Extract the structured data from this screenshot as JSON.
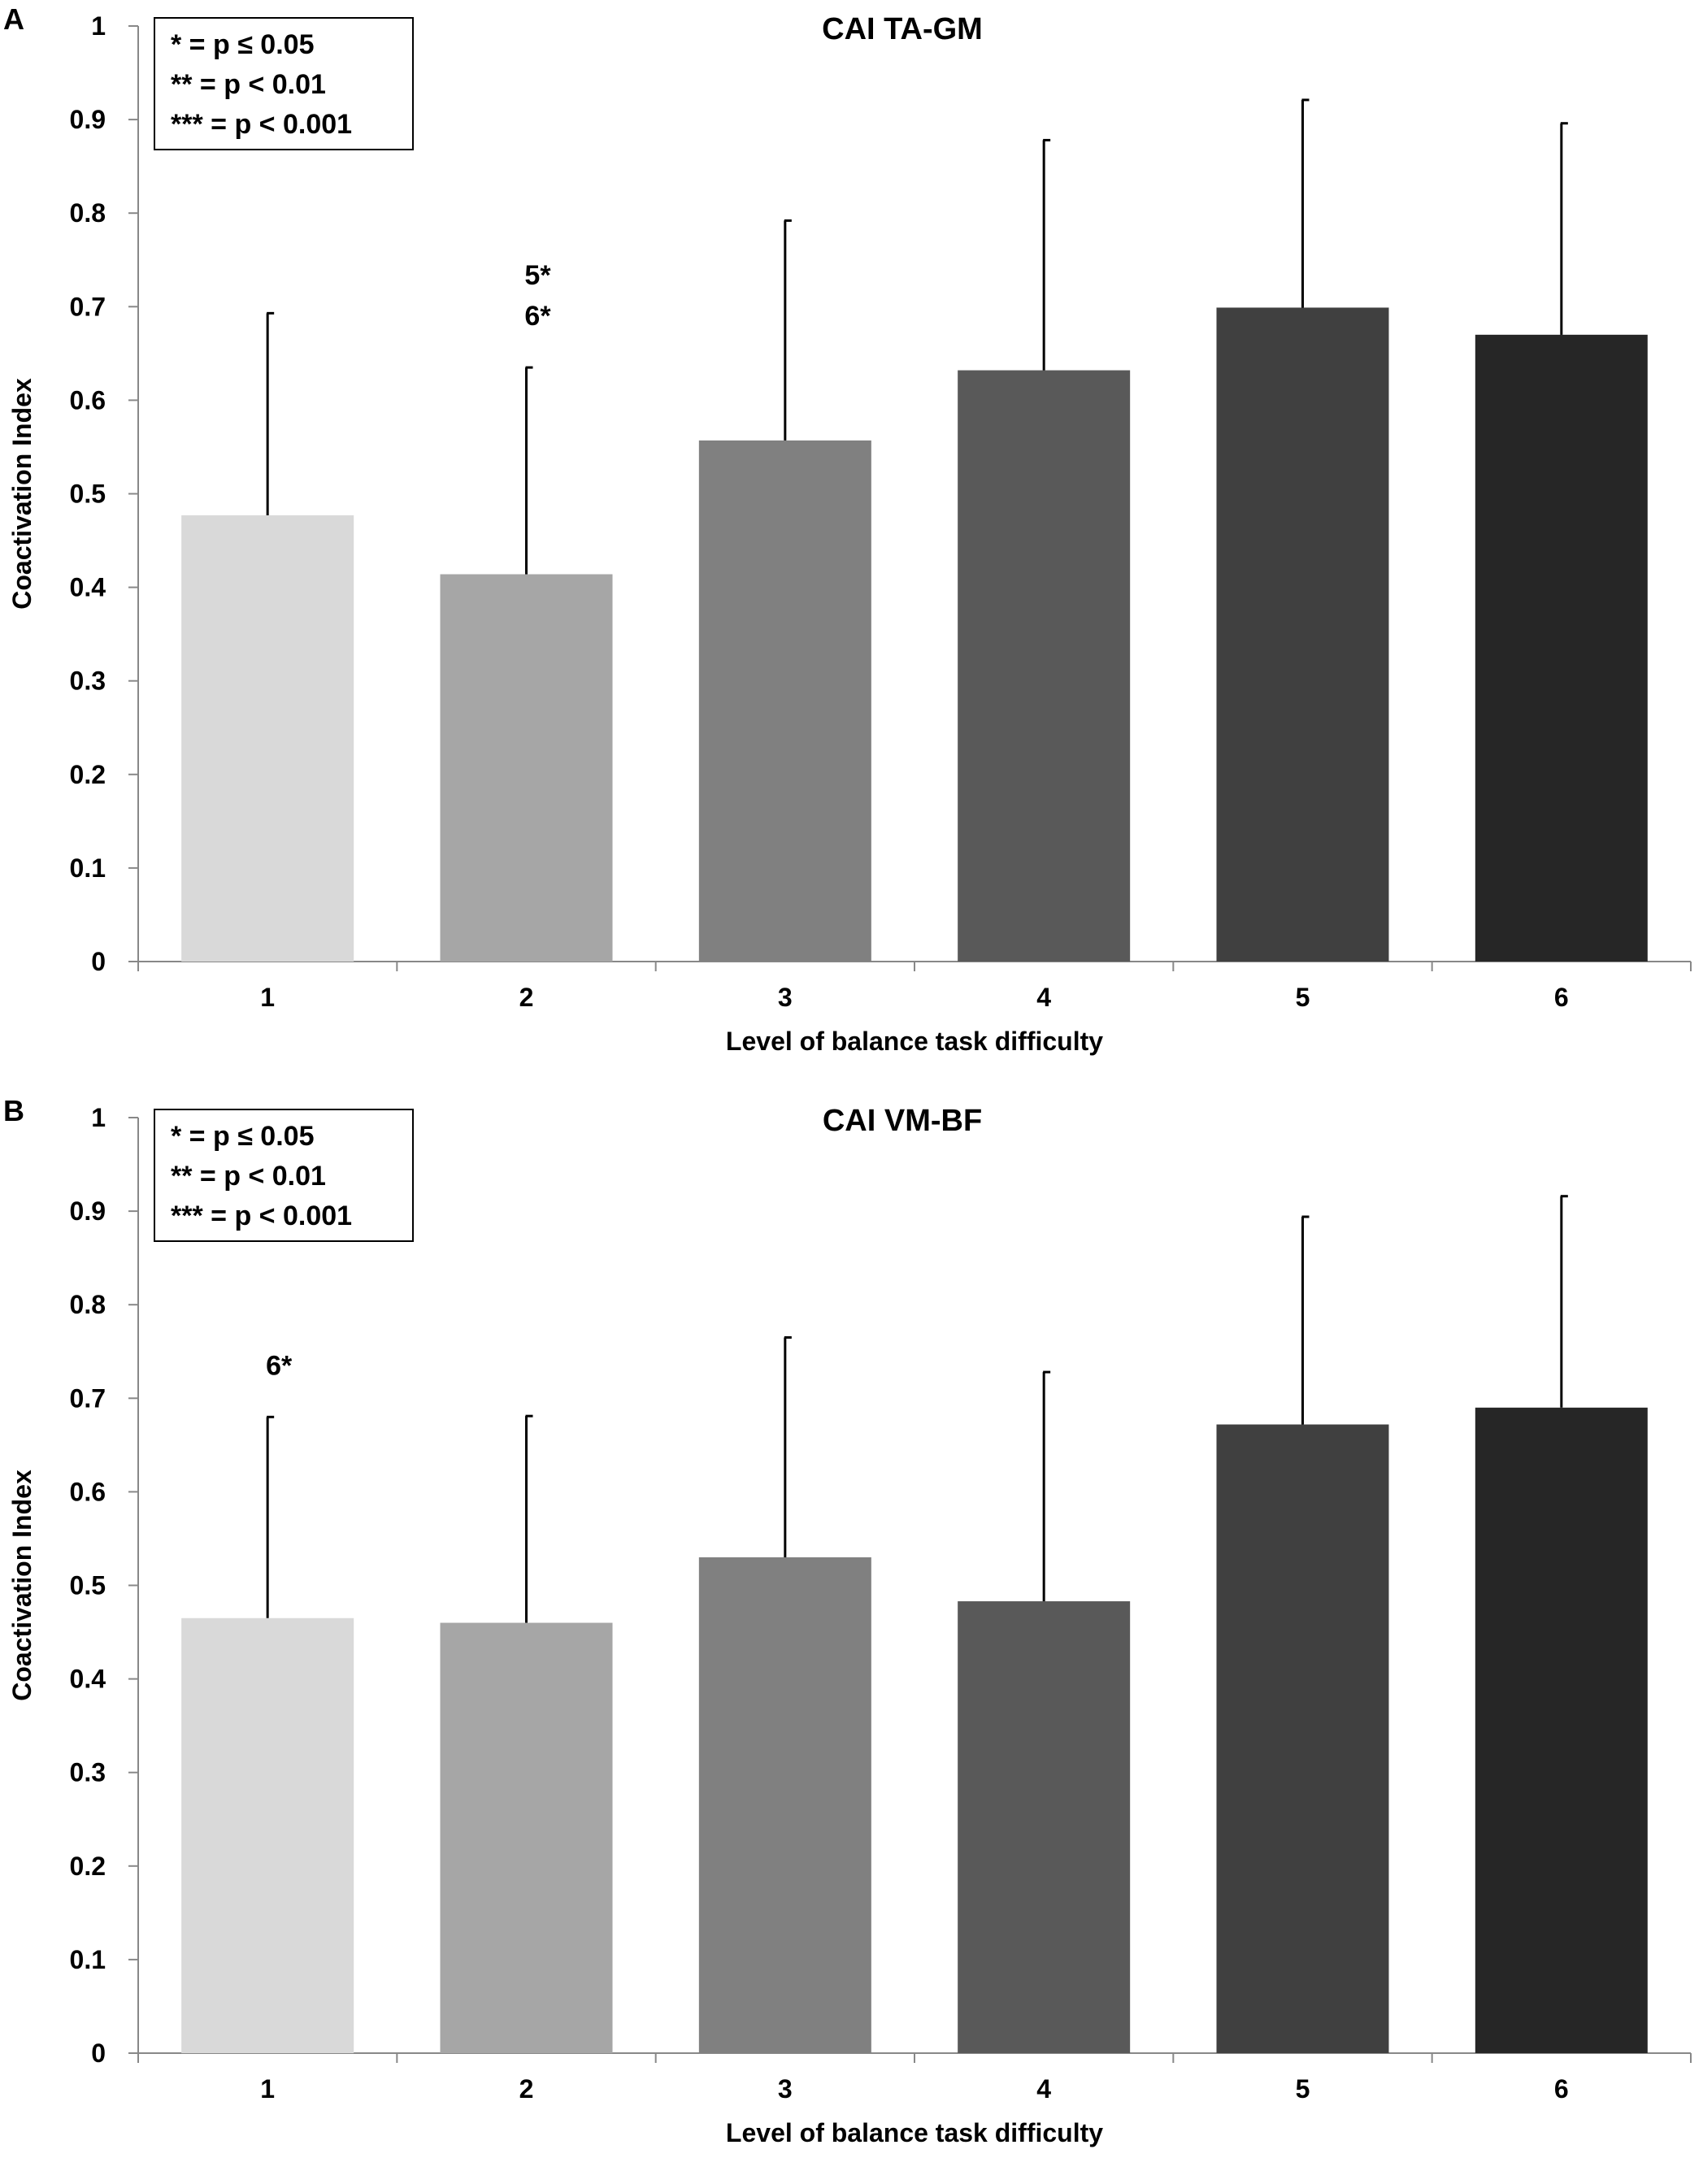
{
  "chart_data": [
    {
      "panel": "A",
      "type": "bar",
      "title": "CAI TA-GM",
      "xlabel": "Level of balance task difficulty",
      "ylabel": "Coactivation Index",
      "ylim": [
        0,
        1
      ],
      "yticks": [
        "0",
        "0.1",
        "0.2",
        "0.3",
        "0.4",
        "0.5",
        "0.6",
        "0.7",
        "0.8",
        "0.9",
        "1"
      ],
      "categories": [
        "1",
        "2",
        "3",
        "4",
        "5",
        "6"
      ],
      "values": [
        0.477,
        0.414,
        0.557,
        0.632,
        0.699,
        0.67
      ],
      "error_upper": [
        0.693,
        0.635,
        0.792,
        0.878,
        0.921,
        0.896
      ],
      "bar_colors": [
        "#d9d9d9",
        "#a6a6a6",
        "#808080",
        "#595959",
        "#404040",
        "#262626"
      ],
      "legend": [
        "* = p ≤ 0.05",
        "** = p < 0.01",
        "*** = p < 0.001"
      ],
      "annotations": [
        {
          "category": "2",
          "lines": [
            "5*",
            "6*"
          ]
        }
      ]
    },
    {
      "panel": "B",
      "type": "bar",
      "title": "CAI VM-BF",
      "xlabel": "Level of balance task difficulty",
      "ylabel": "Coactivation Index",
      "ylim": [
        0,
        1
      ],
      "yticks": [
        "0",
        "0.1",
        "0.2",
        "0.3",
        "0.4",
        "0.5",
        "0.6",
        "0.7",
        "0.8",
        "0.9",
        "1"
      ],
      "categories": [
        "1",
        "2",
        "3",
        "4",
        "5",
        "6"
      ],
      "values": [
        0.465,
        0.46,
        0.53,
        0.483,
        0.672,
        0.69
      ],
      "error_upper": [
        0.68,
        0.681,
        0.765,
        0.728,
        0.894,
        0.916
      ],
      "bar_colors": [
        "#d9d9d9",
        "#a6a6a6",
        "#808080",
        "#595959",
        "#404040",
        "#262626"
      ],
      "legend": [
        "* = p ≤ 0.05",
        "** = p < 0.01",
        "*** = p < 0.001"
      ],
      "annotations": [
        {
          "category": "1",
          "lines": [
            "6*"
          ]
        }
      ]
    }
  ]
}
